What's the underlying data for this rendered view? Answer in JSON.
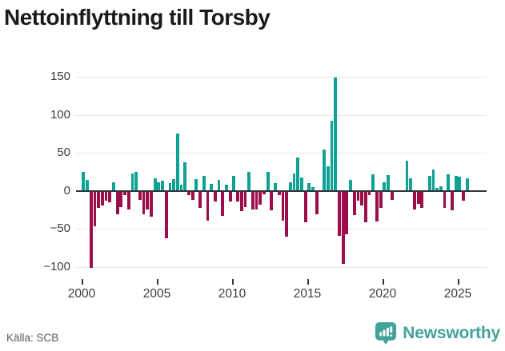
{
  "header": {
    "title": "Nettoinflyttning till Torsby"
  },
  "chart_data": {
    "type": "bar",
    "title": "Nettoinflyttning till Torsby",
    "frequency": "quarterly",
    "x_start_year": 2000,
    "x_start_quarter": 1,
    "values": [
      25,
      14,
      -100,
      -46,
      -21,
      -18,
      -12,
      -14,
      11,
      -30,
      -20,
      -5,
      -23,
      23,
      25,
      -11,
      -30,
      -23,
      -33,
      16,
      11,
      13,
      -61,
      10,
      15,
      75,
      8,
      38,
      -5,
      -11,
      15,
      -21,
      20,
      -38,
      9,
      -13,
      14,
      -32,
      8,
      -13,
      20,
      -13,
      -26,
      -20,
      25,
      -23,
      -23,
      -17,
      -3,
      25,
      -24,
      10,
      -5,
      -38,
      -59,
      11,
      23,
      44,
      18,
      -40,
      10,
      5,
      -30,
      0,
      54,
      32,
      92,
      149,
      -58,
      -95,
      -56,
      14,
      -31,
      -12,
      -18,
      -40,
      -5,
      22,
      -39,
      -21,
      11,
      21,
      -11,
      0,
      0,
      0,
      40,
      17,
      -23,
      -16,
      -21,
      0,
      20,
      28,
      4,
      6,
      -21,
      22,
      -25,
      20,
      19,
      -12,
      16
    ],
    "y_ticks": [
      150,
      100,
      50,
      0,
      -50,
      -100
    ],
    "y_tick_labels": [
      "150",
      "100",
      "50",
      "0",
      "−50",
      "−100"
    ],
    "x_tick_labels": [
      "2000",
      "2005",
      "2010",
      "2015",
      "2020",
      "2025"
    ],
    "ylim": [
      -100,
      150
    ],
    "grid": true,
    "legend": "none",
    "positive_color": "#0ea294",
    "negative_color": "#9b0e47",
    "zero_line_color": "#33333b",
    "grid_color": "#e7e7e7"
  },
  "footer": {
    "source": "Källa: SCB",
    "logo_text": "Newsworthy",
    "logo_color": "#43a29a"
  }
}
